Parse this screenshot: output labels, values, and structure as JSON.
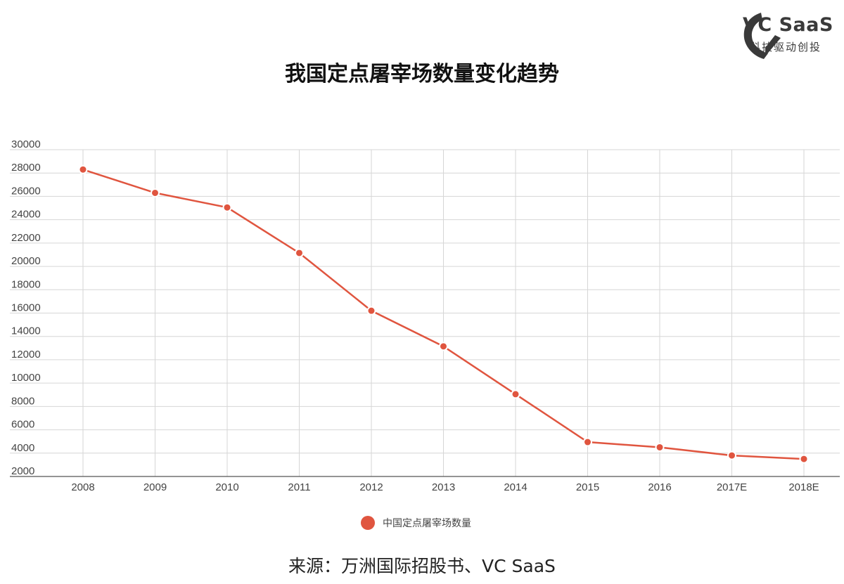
{
  "logo": {
    "icon": "vc-saas-logo-icon",
    "brand": "VC SaaS",
    "tagline": "科技驱动创投",
    "color": "#3a3a3a"
  },
  "chart_data": {
    "type": "line",
    "title": "我国定点屠宰场数量变化趋势",
    "categories": [
      "2008",
      "2009",
      "2010",
      "2011",
      "2012",
      "2013",
      "2014",
      "2015",
      "2016",
      "2017E",
      "2018E"
    ],
    "series": [
      {
        "name": "中国定点屠宰场数量",
        "color": "#e0553f",
        "values": [
          28300,
          26300,
          25050,
          21150,
          16200,
          13150,
          9050,
          4950,
          4500,
          3800,
          3500
        ]
      }
    ],
    "y_ticks": [
      "30000",
      "28000",
      "26000",
      "24000",
      "22000",
      "20000",
      "18000",
      "16000",
      "14000",
      "12000",
      "10000",
      "8000",
      "6000",
      "4000",
      "2000"
    ],
    "ylim": [
      2000,
      30000
    ],
    "grid": true,
    "legend_position": "bottom-center",
    "xlabel": "",
    "ylabel": ""
  },
  "source_text": "来源：万洲国际招股书、VC SaaS"
}
